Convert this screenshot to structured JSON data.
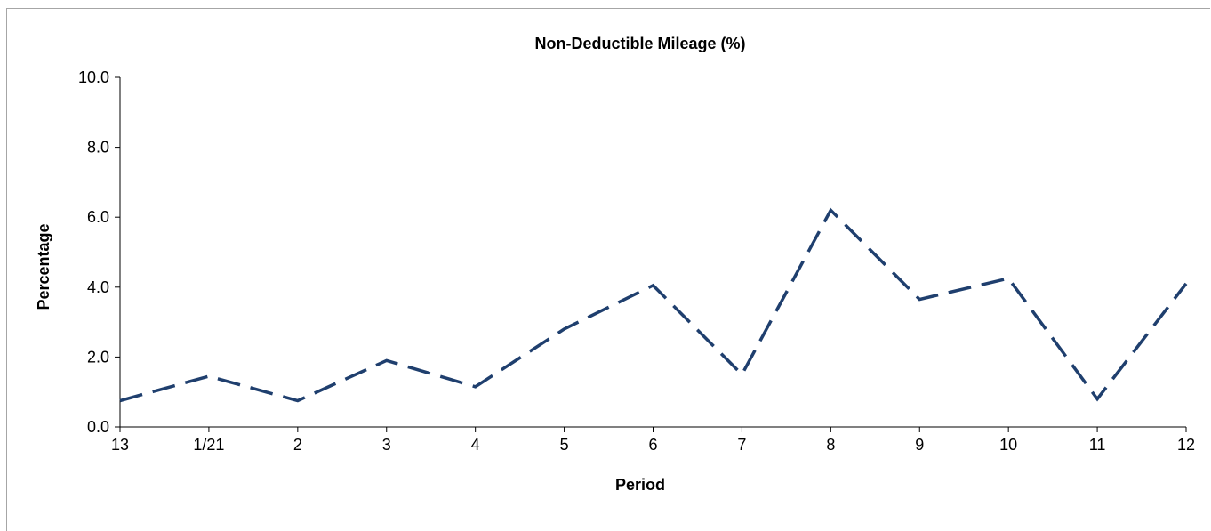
{
  "chart_data": {
    "type": "line",
    "title": "Non-Deductible Mileage (%)",
    "xlabel": "Period",
    "ylabel": "Percentage",
    "categories": [
      "13",
      "1/21",
      "2",
      "3",
      "4",
      "5",
      "6",
      "7",
      "8",
      "9",
      "10",
      "11",
      "12"
    ],
    "series": [
      {
        "values": [
          0.75,
          1.45,
          0.75,
          1.9,
          1.15,
          2.8,
          4.05,
          1.5,
          6.2,
          3.65,
          4.25,
          0.8,
          4.1
        ]
      }
    ],
    "ylim": [
      0,
      10
    ],
    "yticks": [
      "0.0",
      "2.0",
      "4.0",
      "6.0",
      "8.0",
      "10.0"
    ],
    "grid": false,
    "line_style": "dashed",
    "line_color": "#1f3f6e",
    "axis_color": "#000000"
  }
}
